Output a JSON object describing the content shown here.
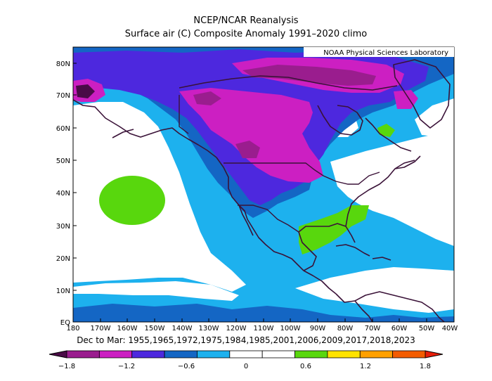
{
  "title": "NCEP/NCAR Reanalysis",
  "subtitle": "Surface air (C) Composite Anomaly 1991–2020 climo",
  "credit": "NOAA Physical Sciences Laboratory",
  "caption": "Dec to Mar: 1955,1965,1972,1975,1984,1985,2001,2006,2009,2017,2018,2023",
  "y_ticks": [
    "80N",
    "70N",
    "60N",
    "50N",
    "40N",
    "30N",
    "20N",
    "10N",
    "EQ"
  ],
  "x_ticks": [
    "180",
    "170W",
    "160W",
    "150W",
    "140W",
    "130W",
    "120W",
    "110W",
    "100W",
    "90W",
    "80W",
    "70W",
    "60W",
    "50W",
    "40W"
  ],
  "colorbar": {
    "labels": [
      "−1.8",
      "−1.2",
      "−0.6",
      "0",
      "0.6",
      "1.2",
      "1.8"
    ],
    "colors": [
      "#9a1d8e",
      "#cc1fc2",
      "#4d28de",
      "#1466c4",
      "#1db1ee",
      "#ffffff",
      "#ffffff",
      "#58d70d",
      "#ffe300",
      "#ffa000",
      "#f35c00"
    ],
    "under_color": "#4a0b47",
    "over_color": "#e81e0a"
  }
}
